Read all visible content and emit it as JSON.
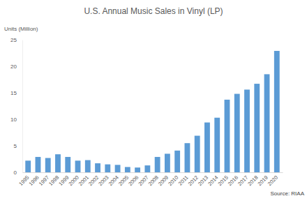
{
  "chart_data": {
    "type": "bar",
    "title": "U.S. Annual Music Sales in Vinyl (LP)",
    "y_label": "Units (Million)",
    "source": "Source: RIAA",
    "categories": [
      "1995",
      "1996",
      "1997",
      "1998",
      "1999",
      "2000",
      "2001",
      "2002",
      "2003",
      "2004",
      "2005",
      "2006",
      "2007",
      "2008",
      "2009",
      "2010",
      "2011",
      "2012",
      "2013",
      "2014",
      "2015",
      "2016",
      "2017",
      "2018",
      "2019",
      "2020"
    ],
    "values": [
      2.2,
      2.9,
      2.7,
      3.4,
      2.9,
      2.2,
      2.3,
      1.7,
      1.5,
      1.4,
      1.0,
      0.9,
      1.3,
      2.9,
      3.5,
      4.1,
      5.5,
      6.9,
      9.4,
      10.3,
      13.7,
      14.8,
      15.6,
      16.7,
      18.5,
      22.9
    ],
    "color": "#5b9bd5",
    "ylim": [
      0,
      25
    ],
    "yticks": [
      0,
      5,
      10,
      15,
      20,
      25
    ],
    "grid": false
  }
}
